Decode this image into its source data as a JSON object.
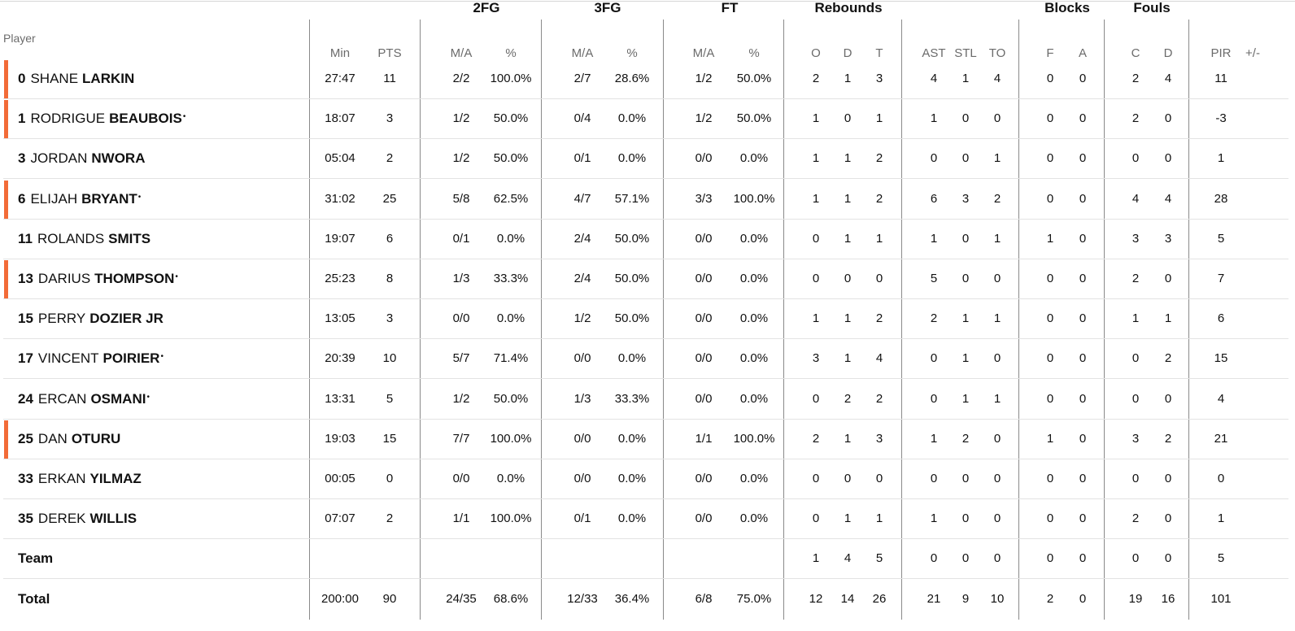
{
  "header": {
    "player_label": "Player",
    "groups": [
      "2FG",
      "3FG",
      "FT",
      "Rebounds",
      "Blocks",
      "Fouls"
    ],
    "columns": [
      "Min",
      "PTS",
      "M/A",
      "%",
      "M/A",
      "%",
      "M/A",
      "%",
      "O",
      "D",
      "T",
      "AST",
      "STL",
      "TO",
      "F",
      "A",
      "C",
      "D",
      "PIR",
      "+/-"
    ]
  },
  "accent_color": "#f26b38",
  "starter_marker": "•",
  "players": [
    {
      "num": "0",
      "first": "SHANE",
      "last": "LARKIN",
      "starter": true,
      "star": false,
      "stats": [
        "27:47",
        "11",
        "2/2",
        "100.0%",
        "2/7",
        "28.6%",
        "1/2",
        "50.0%",
        "2",
        "1",
        "3",
        "4",
        "1",
        "4",
        "0",
        "0",
        "2",
        "4",
        "11",
        ""
      ]
    },
    {
      "num": "1",
      "first": "RODRIGUE",
      "last": "BEAUBOIS",
      "starter": true,
      "star": true,
      "stats": [
        "18:07",
        "3",
        "1/2",
        "50.0%",
        "0/4",
        "0.0%",
        "1/2",
        "50.0%",
        "1",
        "0",
        "1",
        "1",
        "0",
        "0",
        "0",
        "0",
        "2",
        "0",
        "-3",
        ""
      ]
    },
    {
      "num": "3",
      "first": "JORDAN",
      "last": "NWORA",
      "starter": false,
      "star": false,
      "stats": [
        "05:04",
        "2",
        "1/2",
        "50.0%",
        "0/1",
        "0.0%",
        "0/0",
        "0.0%",
        "1",
        "1",
        "2",
        "0",
        "0",
        "1",
        "0",
        "0",
        "0",
        "0",
        "1",
        ""
      ]
    },
    {
      "num": "6",
      "first": "ELIJAH",
      "last": "BRYANT",
      "starter": true,
      "star": true,
      "stats": [
        "31:02",
        "25",
        "5/8",
        "62.5%",
        "4/7",
        "57.1%",
        "3/3",
        "100.0%",
        "1",
        "1",
        "2",
        "6",
        "3",
        "2",
        "0",
        "0",
        "4",
        "4",
        "28",
        ""
      ]
    },
    {
      "num": "11",
      "first": "ROLANDS",
      "last": "SMITS",
      "starter": false,
      "star": false,
      "stats": [
        "19:07",
        "6",
        "0/1",
        "0.0%",
        "2/4",
        "50.0%",
        "0/0",
        "0.0%",
        "0",
        "1",
        "1",
        "1",
        "0",
        "1",
        "1",
        "0",
        "3",
        "3",
        "5",
        ""
      ]
    },
    {
      "num": "13",
      "first": "DARIUS",
      "last": "THOMPSON",
      "starter": true,
      "star": true,
      "stats": [
        "25:23",
        "8",
        "1/3",
        "33.3%",
        "2/4",
        "50.0%",
        "0/0",
        "0.0%",
        "0",
        "0",
        "0",
        "5",
        "0",
        "0",
        "0",
        "0",
        "2",
        "0",
        "7",
        ""
      ]
    },
    {
      "num": "15",
      "first": "PERRY",
      "last": "DOZIER JR",
      "starter": false,
      "star": false,
      "stats": [
        "13:05",
        "3",
        "0/0",
        "0.0%",
        "1/2",
        "50.0%",
        "0/0",
        "0.0%",
        "1",
        "1",
        "2",
        "2",
        "1",
        "1",
        "0",
        "0",
        "1",
        "1",
        "6",
        ""
      ]
    },
    {
      "num": "17",
      "first": "VINCENT",
      "last": "POIRIER",
      "starter": false,
      "star": true,
      "stats": [
        "20:39",
        "10",
        "5/7",
        "71.4%",
        "0/0",
        "0.0%",
        "0/0",
        "0.0%",
        "3",
        "1",
        "4",
        "0",
        "1",
        "0",
        "0",
        "0",
        "0",
        "2",
        "15",
        ""
      ]
    },
    {
      "num": "24",
      "first": "ERCAN",
      "last": "OSMANI",
      "starter": false,
      "star": true,
      "stats": [
        "13:31",
        "5",
        "1/2",
        "50.0%",
        "1/3",
        "33.3%",
        "0/0",
        "0.0%",
        "0",
        "2",
        "2",
        "0",
        "1",
        "1",
        "0",
        "0",
        "0",
        "0",
        "4",
        ""
      ]
    },
    {
      "num": "25",
      "first": "DAN",
      "last": "OTURU",
      "starter": true,
      "star": false,
      "stats": [
        "19:03",
        "15",
        "7/7",
        "100.0%",
        "0/0",
        "0.0%",
        "1/1",
        "100.0%",
        "2",
        "1",
        "3",
        "1",
        "2",
        "0",
        "1",
        "0",
        "3",
        "2",
        "21",
        ""
      ]
    },
    {
      "num": "33",
      "first": "ERKAN",
      "last": "YILMAZ",
      "starter": false,
      "star": false,
      "stats": [
        "00:05",
        "0",
        "0/0",
        "0.0%",
        "0/0",
        "0.0%",
        "0/0",
        "0.0%",
        "0",
        "0",
        "0",
        "0",
        "0",
        "0",
        "0",
        "0",
        "0",
        "0",
        "0",
        ""
      ]
    },
    {
      "num": "35",
      "first": "DEREK",
      "last": "WILLIS",
      "starter": false,
      "star": false,
      "stats": [
        "07:07",
        "2",
        "1/1",
        "100.0%",
        "0/1",
        "0.0%",
        "0/0",
        "0.0%",
        "0",
        "1",
        "1",
        "1",
        "0",
        "0",
        "0",
        "0",
        "2",
        "0",
        "1",
        ""
      ]
    }
  ],
  "team_row": {
    "label": "Team",
    "stats": [
      "",
      "",
      "",
      "",
      "",
      "",
      "",
      "",
      "1",
      "4",
      "5",
      "0",
      "0",
      "0",
      "0",
      "0",
      "0",
      "0",
      "5",
      ""
    ]
  },
  "total_row": {
    "label": "Total",
    "stats": [
      "200:00",
      "90",
      "24/35",
      "68.6%",
      "12/33",
      "36.4%",
      "6/8",
      "75.0%",
      "12",
      "14",
      "26",
      "21",
      "9",
      "10",
      "2",
      "0",
      "19",
      "16",
      "101",
      ""
    ]
  }
}
